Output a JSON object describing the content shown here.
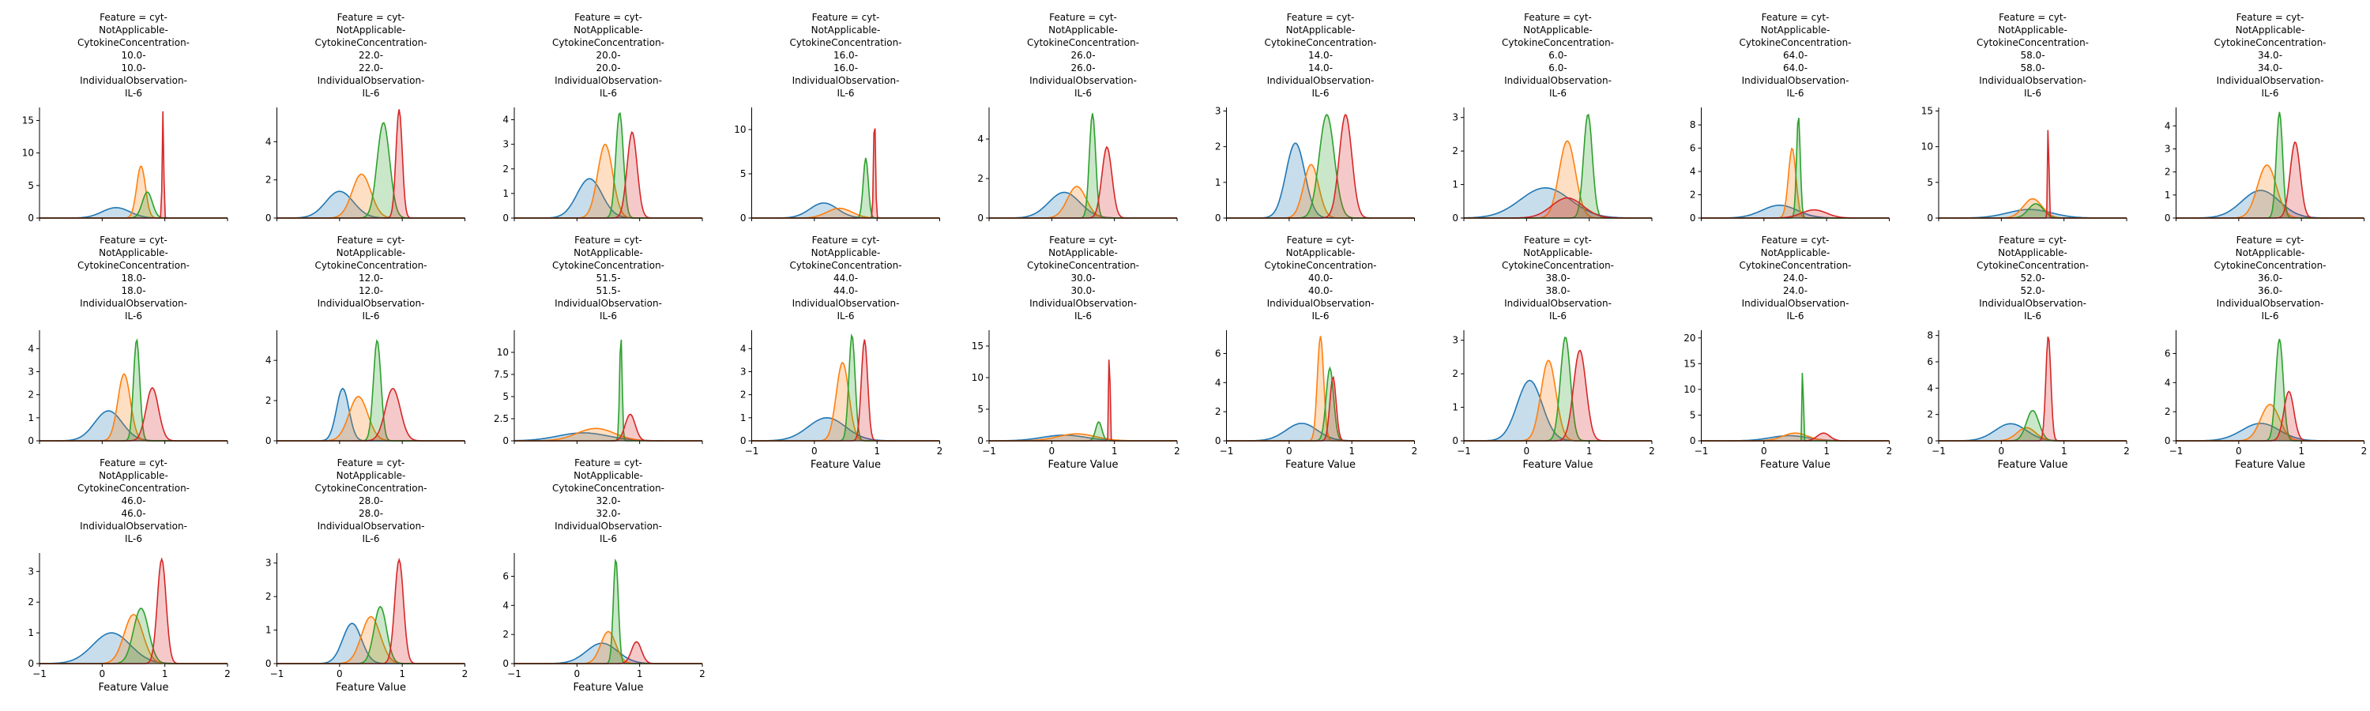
{
  "colors": [
    "#1f77b4",
    "#ff7f0e",
    "#2ca02c",
    "#d62728"
  ],
  "chart_data": {
    "type": "area",
    "layout": {
      "rows": 3,
      "cols": 10
    },
    "xlabel": "Feature Value",
    "xlim": [
      -1,
      2
    ],
    "xticks": [
      -1,
      0,
      1,
      2
    ],
    "panels": [
      {
        "title": [
          "Feature = cyt-",
          "NotApplicable-",
          "CytokineConcentration-",
          "10.0-",
          "10.0-",
          "IndividualObservation-",
          "IL-6"
        ],
        "ylim": [
          0,
          17
        ],
        "yticks": [
          0,
          5,
          10,
          15
        ],
        "series": [
          {
            "mean": 0.22,
            "sd": 0.22,
            "peak": 1.6
          },
          {
            "mean": 0.62,
            "sd": 0.07,
            "peak": 8.0
          },
          {
            "mean": 0.72,
            "sd": 0.08,
            "peak": 4.0
          },
          {
            "mean": 0.97,
            "sd": 0.012,
            "peak": 16.5
          }
        ]
      },
      {
        "title": [
          "Feature = cyt-",
          "NotApplicable-",
          "CytokineConcentration-",
          "22.0-",
          "22.0-",
          "IndividualObservation-",
          "IL-6"
        ],
        "ylim": [
          0,
          5.8
        ],
        "yticks": [
          0,
          2,
          4
        ],
        "series": [
          {
            "mean": 0.0,
            "sd": 0.22,
            "peak": 1.4
          },
          {
            "mean": 0.35,
            "sd": 0.15,
            "peak": 2.3
          },
          {
            "mean": 0.7,
            "sd": 0.1,
            "peak": 5.0
          },
          {
            "mean": 0.95,
            "sd": 0.05,
            "peak": 5.7
          }
        ]
      },
      {
        "title": [
          "Feature = cyt-",
          "NotApplicable-",
          "CytokineConcentration-",
          "20.0-",
          "20.0-",
          "IndividualObservation-",
          "IL-6"
        ],
        "ylim": [
          0,
          4.5
        ],
        "yticks": [
          0,
          1,
          2,
          3,
          4
        ],
        "series": [
          {
            "mean": 0.2,
            "sd": 0.2,
            "peak": 1.6
          },
          {
            "mean": 0.45,
            "sd": 0.12,
            "peak": 3.0
          },
          {
            "mean": 0.68,
            "sd": 0.06,
            "peak": 4.3
          },
          {
            "mean": 0.88,
            "sd": 0.08,
            "peak": 3.5
          }
        ]
      },
      {
        "title": [
          "Feature = cyt-",
          "NotApplicable-",
          "CytokineConcentration-",
          "16.0-",
          "16.0-",
          "IndividualObservation-",
          "IL-6"
        ],
        "ylim": [
          0,
          12.5
        ],
        "yticks": [
          0,
          5,
          10
        ],
        "series": [
          {
            "mean": 0.15,
            "sd": 0.22,
            "peak": 1.7
          },
          {
            "mean": 0.4,
            "sd": 0.2,
            "peak": 1.1
          },
          {
            "mean": 0.82,
            "sd": 0.04,
            "peak": 6.8
          },
          {
            "mean": 0.96,
            "sd": 0.015,
            "peak": 12.0
          }
        ]
      },
      {
        "title": [
          "Feature = cyt-",
          "NotApplicable-",
          "CytokineConcentration-",
          "26.0-",
          "26.0-",
          "IndividualObservation-",
          "IL-6"
        ],
        "ylim": [
          0,
          5.6
        ],
        "yticks": [
          0,
          2,
          4
        ],
        "series": [
          {
            "mean": 0.2,
            "sd": 0.25,
            "peak": 1.3
          },
          {
            "mean": 0.4,
            "sd": 0.15,
            "peak": 1.6
          },
          {
            "mean": 0.65,
            "sd": 0.05,
            "peak": 5.3
          },
          {
            "mean": 0.88,
            "sd": 0.08,
            "peak": 3.6
          }
        ]
      },
      {
        "title": [
          "Feature = cyt-",
          "NotApplicable-",
          "CytokineConcentration-",
          "14.0-",
          "14.0-",
          "IndividualObservation-",
          "IL-6"
        ],
        "ylim": [
          0,
          3.1
        ],
        "yticks": [
          0,
          1,
          2,
          3
        ],
        "series": [
          {
            "mean": 0.1,
            "sd": 0.15,
            "peak": 2.1
          },
          {
            "mean": 0.35,
            "sd": 0.12,
            "peak": 1.5
          },
          {
            "mean": 0.6,
            "sd": 0.12,
            "peak": 2.9
          },
          {
            "mean": 0.9,
            "sd": 0.1,
            "peak": 2.9
          }
        ]
      },
      {
        "title": [
          "Feature = cyt-",
          "NotApplicable-",
          "CytokineConcentration-",
          "6.0-",
          "6.0-",
          "IndividualObservation-",
          "IL-6"
        ],
        "ylim": [
          0,
          3.3
        ],
        "yticks": [
          0,
          1,
          2,
          3
        ],
        "series": [
          {
            "mean": 0.3,
            "sd": 0.4,
            "peak": 0.9
          },
          {
            "mean": 0.65,
            "sd": 0.13,
            "peak": 2.3
          },
          {
            "mean": 0.98,
            "sd": 0.07,
            "peak": 3.1
          },
          {
            "mean": 0.65,
            "sd": 0.25,
            "peak": 0.6
          }
        ]
      },
      {
        "title": [
          "Feature = cyt-",
          "NotApplicable-",
          "CytokineConcentration-",
          "64.0-",
          "64.0-",
          "IndividualObservation-",
          "IL-6"
        ],
        "ylim": [
          0,
          9.5
        ],
        "yticks": [
          0,
          2,
          4,
          6,
          8
        ],
        "series": [
          {
            "mean": 0.25,
            "sd": 0.28,
            "peak": 1.1
          },
          {
            "mean": 0.45,
            "sd": 0.06,
            "peak": 6.0
          },
          {
            "mean": 0.55,
            "sd": 0.03,
            "peak": 8.8
          },
          {
            "mean": 0.8,
            "sd": 0.2,
            "peak": 0.7
          }
        ]
      },
      {
        "title": [
          "Feature = cyt-",
          "NotApplicable-",
          "CytokineConcentration-",
          "58.0-",
          "58.0-",
          "IndividualObservation-",
          "IL-6"
        ],
        "ylim": [
          0,
          15.5
        ],
        "yticks": [
          0,
          5,
          10,
          15
        ],
        "series": [
          {
            "mean": 0.45,
            "sd": 0.35,
            "peak": 1.2
          },
          {
            "mean": 0.5,
            "sd": 0.15,
            "peak": 2.7
          },
          {
            "mean": 0.55,
            "sd": 0.12,
            "peak": 2.0
          },
          {
            "mean": 0.75,
            "sd": 0.01,
            "peak": 15.0
          }
        ]
      },
      {
        "title": [
          "Feature = cyt-",
          "NotApplicable-",
          "CytokineConcentration-",
          "34.0-",
          "34.0-",
          "IndividualObservation-",
          "IL-6"
        ],
        "ylim": [
          0,
          4.8
        ],
        "yticks": [
          0,
          1,
          2,
          3,
          4
        ],
        "series": [
          {
            "mean": 0.35,
            "sd": 0.3,
            "peak": 1.2
          },
          {
            "mean": 0.45,
            "sd": 0.15,
            "peak": 2.3
          },
          {
            "mean": 0.65,
            "sd": 0.05,
            "peak": 4.6
          },
          {
            "mean": 0.9,
            "sd": 0.08,
            "peak": 3.3
          }
        ]
      },
      {
        "title": [
          "Feature = cyt-",
          "NotApplicable-",
          "CytokineConcentration-",
          "18.0-",
          "18.0-",
          "IndividualObservation-",
          "IL-6"
        ],
        "ylim": [
          0,
          4.8
        ],
        "yticks": [
          0,
          1,
          2,
          3,
          4
        ],
        "series": [
          {
            "mean": 0.1,
            "sd": 0.22,
            "peak": 1.3
          },
          {
            "mean": 0.35,
            "sd": 0.1,
            "peak": 2.9
          },
          {
            "mean": 0.55,
            "sd": 0.05,
            "peak": 4.4
          },
          {
            "mean": 0.8,
            "sd": 0.1,
            "peak": 2.3
          }
        ]
      },
      {
        "title": [
          "Feature = cyt-",
          "NotApplicable-",
          "CytokineConcentration-",
          "12.0-",
          "12.0-",
          "IndividualObservation-",
          "IL-6"
        ],
        "ylim": [
          0,
          5.5
        ],
        "yticks": [
          0,
          2,
          4
        ],
        "series": [
          {
            "mean": 0.05,
            "sd": 0.1,
            "peak": 2.6
          },
          {
            "mean": 0.3,
            "sd": 0.15,
            "peak": 2.2
          },
          {
            "mean": 0.6,
            "sd": 0.06,
            "peak": 5.0
          },
          {
            "mean": 0.85,
            "sd": 0.12,
            "peak": 2.6
          }
        ]
      },
      {
        "title": [
          "Feature = cyt-",
          "NotApplicable-",
          "CytokineConcentration-",
          "51.5-",
          "51.5-",
          "IndividualObservation-",
          "IL-6"
        ],
        "ylim": [
          0,
          12.5
        ],
        "yticks": [
          0,
          2.5,
          5.0,
          7.5,
          10.0
        ],
        "series": [
          {
            "mean": 0.1,
            "sd": 0.4,
            "peak": 0.9
          },
          {
            "mean": 0.3,
            "sd": 0.3,
            "peak": 1.4
          },
          {
            "mean": 0.7,
            "sd": 0.02,
            "peak": 12.0
          },
          {
            "mean": 0.85,
            "sd": 0.08,
            "peak": 3.0
          }
        ]
      },
      {
        "title": [
          "Feature = cyt-",
          "NotApplicable-",
          "CytokineConcentration-",
          "44.0-",
          "44.0-",
          "IndividualObservation-",
          "IL-6"
        ],
        "ylim": [
          0,
          4.8
        ],
        "yticks": [
          0,
          1,
          2,
          3,
          4
        ],
        "series": [
          {
            "mean": 0.2,
            "sd": 0.3,
            "peak": 1.0
          },
          {
            "mean": 0.45,
            "sd": 0.1,
            "peak": 3.4
          },
          {
            "mean": 0.6,
            "sd": 0.05,
            "peak": 4.6
          },
          {
            "mean": 0.8,
            "sd": 0.05,
            "peak": 4.4
          }
        ]
      },
      {
        "title": [
          "Feature = cyt-",
          "NotApplicable-",
          "CytokineConcentration-",
          "30.0-",
          "30.0-",
          "IndividualObservation-",
          "IL-6"
        ],
        "ylim": [
          0,
          17.5
        ],
        "yticks": [
          0,
          5,
          10,
          15
        ],
        "series": [
          {
            "mean": 0.2,
            "sd": 0.35,
            "peak": 0.9
          },
          {
            "mean": 0.4,
            "sd": 0.3,
            "peak": 1.1
          },
          {
            "mean": 0.75,
            "sd": 0.05,
            "peak": 3.0
          },
          {
            "mean": 0.92,
            "sd": 0.01,
            "peak": 17.0
          }
        ]
      },
      {
        "title": [
          "Feature = cyt-",
          "NotApplicable-",
          "CytokineConcentration-",
          "40.0-",
          "40.0-",
          "IndividualObservation-",
          "IL-6"
        ],
        "ylim": [
          0,
          7.6
        ],
        "yticks": [
          0,
          2,
          4,
          6
        ],
        "series": [
          {
            "mean": 0.2,
            "sd": 0.25,
            "peak": 1.2
          },
          {
            "mean": 0.5,
            "sd": 0.05,
            "peak": 7.2
          },
          {
            "mean": 0.65,
            "sd": 0.06,
            "peak": 5.0
          },
          {
            "mean": 0.7,
            "sd": 0.05,
            "peak": 4.4
          }
        ]
      },
      {
        "title": [
          "Feature = cyt-",
          "NotApplicable-",
          "CytokineConcentration-",
          "38.0-",
          "38.0-",
          "IndividualObservation-",
          "IL-6"
        ],
        "ylim": [
          0,
          3.3
        ],
        "yticks": [
          0,
          1,
          2,
          3
        ],
        "series": [
          {
            "mean": 0.05,
            "sd": 0.2,
            "peak": 1.8
          },
          {
            "mean": 0.35,
            "sd": 0.12,
            "peak": 2.4
          },
          {
            "mean": 0.62,
            "sd": 0.08,
            "peak": 3.1
          },
          {
            "mean": 0.85,
            "sd": 0.1,
            "peak": 2.7
          }
        ]
      },
      {
        "title": [
          "Feature = cyt-",
          "NotApplicable-",
          "CytokineConcentration-",
          "24.0-",
          "24.0-",
          "IndividualObservation-",
          "IL-6"
        ],
        "ylim": [
          0,
          21.5
        ],
        "yticks": [
          0,
          5,
          10,
          15,
          20
        ],
        "series": [
          {
            "mean": 0.4,
            "sd": 0.3,
            "peak": 1.0
          },
          {
            "mean": 0.5,
            "sd": 0.2,
            "peak": 1.5
          },
          {
            "mean": 0.62,
            "sd": 0.008,
            "peak": 20.5
          },
          {
            "mean": 0.95,
            "sd": 0.1,
            "peak": 1.5
          }
        ]
      },
      {
        "title": [
          "Feature = cyt-",
          "NotApplicable-",
          "CytokineConcentration-",
          "52.0-",
          "52.0-",
          "IndividualObservation-",
          "IL-6"
        ],
        "ylim": [
          0,
          8.4
        ],
        "yticks": [
          0,
          2,
          4,
          6,
          8
        ],
        "series": [
          {
            "mean": 0.15,
            "sd": 0.25,
            "peak": 1.3
          },
          {
            "mean": 0.4,
            "sd": 0.15,
            "peak": 1.0
          },
          {
            "mean": 0.5,
            "sd": 0.1,
            "peak": 2.3
          },
          {
            "mean": 0.75,
            "sd": 0.04,
            "peak": 8.0
          }
        ]
      },
      {
        "title": [
          "Feature = cyt-",
          "NotApplicable-",
          "CytokineConcentration-",
          "36.0-",
          "36.0-",
          "IndividualObservation-",
          "IL-6"
        ],
        "ylim": [
          0,
          7.6
        ],
        "yticks": [
          0,
          2,
          4,
          6
        ],
        "series": [
          {
            "mean": 0.35,
            "sd": 0.3,
            "peak": 1.2
          },
          {
            "mean": 0.5,
            "sd": 0.15,
            "peak": 2.5
          },
          {
            "mean": 0.65,
            "sd": 0.06,
            "peak": 7.0
          },
          {
            "mean": 0.8,
            "sd": 0.08,
            "peak": 3.4
          }
        ]
      },
      {
        "title": [
          "Feature = cyt-",
          "NotApplicable-",
          "CytokineConcentration-",
          "46.0-",
          "46.0-",
          "IndividualObservation-",
          "IL-6"
        ],
        "ylim": [
          0,
          3.6
        ],
        "yticks": [
          0,
          1,
          2,
          3
        ],
        "series": [
          {
            "mean": 0.15,
            "sd": 0.3,
            "peak": 1.0
          },
          {
            "mean": 0.5,
            "sd": 0.15,
            "peak": 1.6
          },
          {
            "mean": 0.62,
            "sd": 0.12,
            "peak": 1.8
          },
          {
            "mean": 0.95,
            "sd": 0.07,
            "peak": 3.4
          }
        ]
      },
      {
        "title": [
          "Feature = cyt-",
          "NotApplicable-",
          "CytokineConcentration-",
          "28.0-",
          "28.0-",
          "IndividualObservation-",
          "IL-6"
        ],
        "ylim": [
          0,
          3.3
        ],
        "yticks": [
          0,
          1,
          2,
          3
        ],
        "series": [
          {
            "mean": 0.2,
            "sd": 0.15,
            "peak": 1.2
          },
          {
            "mean": 0.5,
            "sd": 0.15,
            "peak": 1.4
          },
          {
            "mean": 0.65,
            "sd": 0.1,
            "peak": 1.7
          },
          {
            "mean": 0.95,
            "sd": 0.07,
            "peak": 3.1
          }
        ]
      },
      {
        "title": [
          "Feature = cyt-",
          "NotApplicable-",
          "CytokineConcentration-",
          "32.0-",
          "32.0-",
          "IndividualObservation-",
          "IL-6"
        ],
        "ylim": [
          0,
          7.6
        ],
        "yticks": [
          0,
          2,
          4,
          6
        ],
        "series": [
          {
            "mean": 0.4,
            "sd": 0.25,
            "peak": 1.4
          },
          {
            "mean": 0.5,
            "sd": 0.12,
            "peak": 2.2
          },
          {
            "mean": 0.62,
            "sd": 0.04,
            "peak": 7.2
          },
          {
            "mean": 0.95,
            "sd": 0.08,
            "peak": 1.5
          }
        ]
      }
    ]
  }
}
